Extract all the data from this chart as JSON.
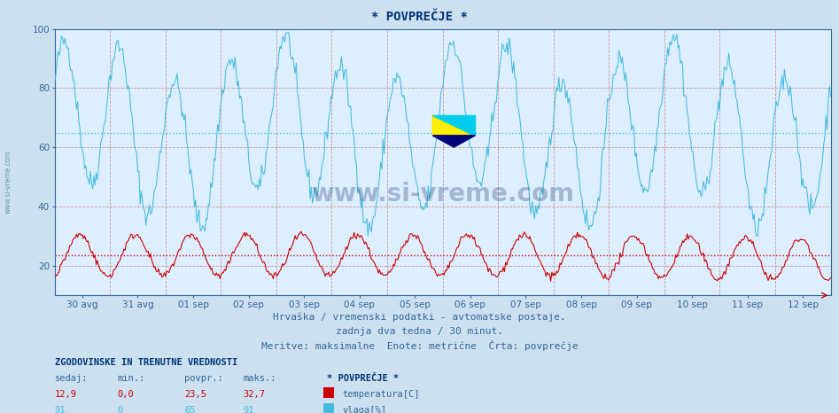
{
  "title": "* POVPREČJE *",
  "bg_color": "#cce0f0",
  "plot_bg_color": "#ddeeff",
  "line_color_humidity": "#44bbdd",
  "line_color_temp": "#cc0000",
  "grid_color_h": "#cc8888",
  "grid_color_v": "#cc8888",
  "avg_line_humidity": 65,
  "avg_line_temp": 23.5,
  "x_labels": [
    "30 avg",
    "31 avg",
    "01 sep",
    "02 sep",
    "03 sep",
    "04 sep",
    "05 sep",
    "06 sep",
    "07 sep",
    "08 sep",
    "09 sep",
    "10 sep",
    "11 sep",
    "12 sep"
  ],
  "ymin": 10,
  "ymax": 100,
  "yticks": [
    20,
    40,
    60,
    80,
    100
  ],
  "xlabel_color": "#336699",
  "title_color": "#003377",
  "footer_line1": "Hrvaška / vremenski podatki - avtomatske postaje.",
  "footer_line2": "zadnja dva tedna / 30 minut.",
  "footer_line3": "Meritve: maksimalne  Enote: metrične  Črta: povprečje",
  "footer_color": "#336699",
  "legend_title": "* POVPREČJE *",
  "legend_temp_label": "temperatura[C]",
  "legend_humidity_label": "vlaga[%]",
  "stats_header": "ZGODOVINSKE IN TRENUTNE VREDNOSTI",
  "stats_cols": [
    "sedaj:",
    "min.:",
    "povpr.:",
    "maks.:"
  ],
  "stats_temp": [
    "12,9",
    "0,0",
    "23,5",
    "32,7"
  ],
  "stats_humidity": [
    "91",
    "0",
    "65",
    "91"
  ],
  "watermark": "www.si-vreme.com",
  "watermark_color": "#1a3a6e",
  "watermark_alpha": 0.3,
  "n_days": 14,
  "points_per_day": 48
}
